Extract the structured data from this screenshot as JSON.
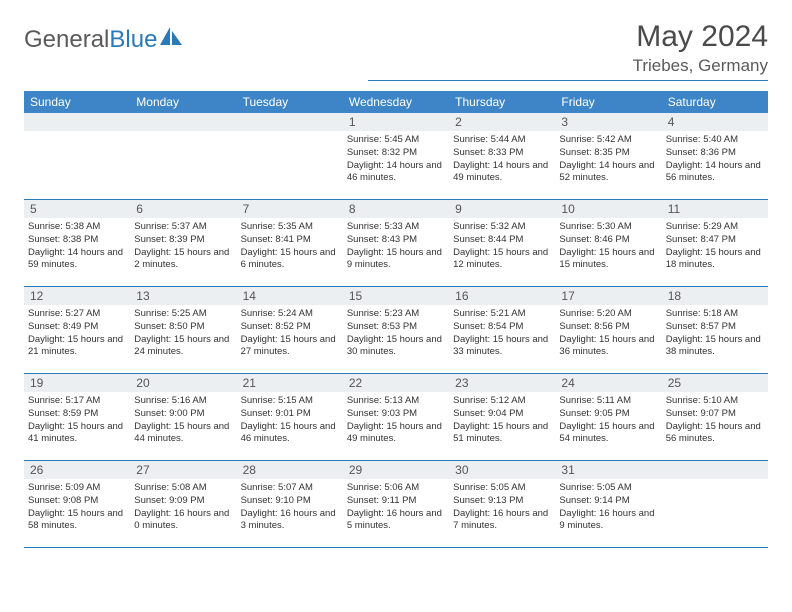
{
  "brand": {
    "part1": "General",
    "part2": "Blue"
  },
  "title": "May 2024",
  "location": "Triebes, Germany",
  "colors": {
    "header_bg": "#3d85c6",
    "accent": "#2a7ab9",
    "daynum_bg": "#eceff1",
    "text": "#333333",
    "brand_gray": "#5a5a5a"
  },
  "dow": [
    "Sunday",
    "Monday",
    "Tuesday",
    "Wednesday",
    "Thursday",
    "Friday",
    "Saturday"
  ],
  "weeks": [
    [
      {
        "n": "",
        "sr": "",
        "ss": "",
        "dl": ""
      },
      {
        "n": "",
        "sr": "",
        "ss": "",
        "dl": ""
      },
      {
        "n": "",
        "sr": "",
        "ss": "",
        "dl": ""
      },
      {
        "n": "1",
        "sr": "Sunrise: 5:45 AM",
        "ss": "Sunset: 8:32 PM",
        "dl": "Daylight: 14 hours and 46 minutes."
      },
      {
        "n": "2",
        "sr": "Sunrise: 5:44 AM",
        "ss": "Sunset: 8:33 PM",
        "dl": "Daylight: 14 hours and 49 minutes."
      },
      {
        "n": "3",
        "sr": "Sunrise: 5:42 AM",
        "ss": "Sunset: 8:35 PM",
        "dl": "Daylight: 14 hours and 52 minutes."
      },
      {
        "n": "4",
        "sr": "Sunrise: 5:40 AM",
        "ss": "Sunset: 8:36 PM",
        "dl": "Daylight: 14 hours and 56 minutes."
      }
    ],
    [
      {
        "n": "5",
        "sr": "Sunrise: 5:38 AM",
        "ss": "Sunset: 8:38 PM",
        "dl": "Daylight: 14 hours and 59 minutes."
      },
      {
        "n": "6",
        "sr": "Sunrise: 5:37 AM",
        "ss": "Sunset: 8:39 PM",
        "dl": "Daylight: 15 hours and 2 minutes."
      },
      {
        "n": "7",
        "sr": "Sunrise: 5:35 AM",
        "ss": "Sunset: 8:41 PM",
        "dl": "Daylight: 15 hours and 6 minutes."
      },
      {
        "n": "8",
        "sr": "Sunrise: 5:33 AM",
        "ss": "Sunset: 8:43 PM",
        "dl": "Daylight: 15 hours and 9 minutes."
      },
      {
        "n": "9",
        "sr": "Sunrise: 5:32 AM",
        "ss": "Sunset: 8:44 PM",
        "dl": "Daylight: 15 hours and 12 minutes."
      },
      {
        "n": "10",
        "sr": "Sunrise: 5:30 AM",
        "ss": "Sunset: 8:46 PM",
        "dl": "Daylight: 15 hours and 15 minutes."
      },
      {
        "n": "11",
        "sr": "Sunrise: 5:29 AM",
        "ss": "Sunset: 8:47 PM",
        "dl": "Daylight: 15 hours and 18 minutes."
      }
    ],
    [
      {
        "n": "12",
        "sr": "Sunrise: 5:27 AM",
        "ss": "Sunset: 8:49 PM",
        "dl": "Daylight: 15 hours and 21 minutes."
      },
      {
        "n": "13",
        "sr": "Sunrise: 5:25 AM",
        "ss": "Sunset: 8:50 PM",
        "dl": "Daylight: 15 hours and 24 minutes."
      },
      {
        "n": "14",
        "sr": "Sunrise: 5:24 AM",
        "ss": "Sunset: 8:52 PM",
        "dl": "Daylight: 15 hours and 27 minutes."
      },
      {
        "n": "15",
        "sr": "Sunrise: 5:23 AM",
        "ss": "Sunset: 8:53 PM",
        "dl": "Daylight: 15 hours and 30 minutes."
      },
      {
        "n": "16",
        "sr": "Sunrise: 5:21 AM",
        "ss": "Sunset: 8:54 PM",
        "dl": "Daylight: 15 hours and 33 minutes."
      },
      {
        "n": "17",
        "sr": "Sunrise: 5:20 AM",
        "ss": "Sunset: 8:56 PM",
        "dl": "Daylight: 15 hours and 36 minutes."
      },
      {
        "n": "18",
        "sr": "Sunrise: 5:18 AM",
        "ss": "Sunset: 8:57 PM",
        "dl": "Daylight: 15 hours and 38 minutes."
      }
    ],
    [
      {
        "n": "19",
        "sr": "Sunrise: 5:17 AM",
        "ss": "Sunset: 8:59 PM",
        "dl": "Daylight: 15 hours and 41 minutes."
      },
      {
        "n": "20",
        "sr": "Sunrise: 5:16 AM",
        "ss": "Sunset: 9:00 PM",
        "dl": "Daylight: 15 hours and 44 minutes."
      },
      {
        "n": "21",
        "sr": "Sunrise: 5:15 AM",
        "ss": "Sunset: 9:01 PM",
        "dl": "Daylight: 15 hours and 46 minutes."
      },
      {
        "n": "22",
        "sr": "Sunrise: 5:13 AM",
        "ss": "Sunset: 9:03 PM",
        "dl": "Daylight: 15 hours and 49 minutes."
      },
      {
        "n": "23",
        "sr": "Sunrise: 5:12 AM",
        "ss": "Sunset: 9:04 PM",
        "dl": "Daylight: 15 hours and 51 minutes."
      },
      {
        "n": "24",
        "sr": "Sunrise: 5:11 AM",
        "ss": "Sunset: 9:05 PM",
        "dl": "Daylight: 15 hours and 54 minutes."
      },
      {
        "n": "25",
        "sr": "Sunrise: 5:10 AM",
        "ss": "Sunset: 9:07 PM",
        "dl": "Daylight: 15 hours and 56 minutes."
      }
    ],
    [
      {
        "n": "26",
        "sr": "Sunrise: 5:09 AM",
        "ss": "Sunset: 9:08 PM",
        "dl": "Daylight: 15 hours and 58 minutes."
      },
      {
        "n": "27",
        "sr": "Sunrise: 5:08 AM",
        "ss": "Sunset: 9:09 PM",
        "dl": "Daylight: 16 hours and 0 minutes."
      },
      {
        "n": "28",
        "sr": "Sunrise: 5:07 AM",
        "ss": "Sunset: 9:10 PM",
        "dl": "Daylight: 16 hours and 3 minutes."
      },
      {
        "n": "29",
        "sr": "Sunrise: 5:06 AM",
        "ss": "Sunset: 9:11 PM",
        "dl": "Daylight: 16 hours and 5 minutes."
      },
      {
        "n": "30",
        "sr": "Sunrise: 5:05 AM",
        "ss": "Sunset: 9:13 PM",
        "dl": "Daylight: 16 hours and 7 minutes."
      },
      {
        "n": "31",
        "sr": "Sunrise: 5:05 AM",
        "ss": "Sunset: 9:14 PM",
        "dl": "Daylight: 16 hours and 9 minutes."
      },
      {
        "n": "",
        "sr": "",
        "ss": "",
        "dl": ""
      }
    ]
  ]
}
